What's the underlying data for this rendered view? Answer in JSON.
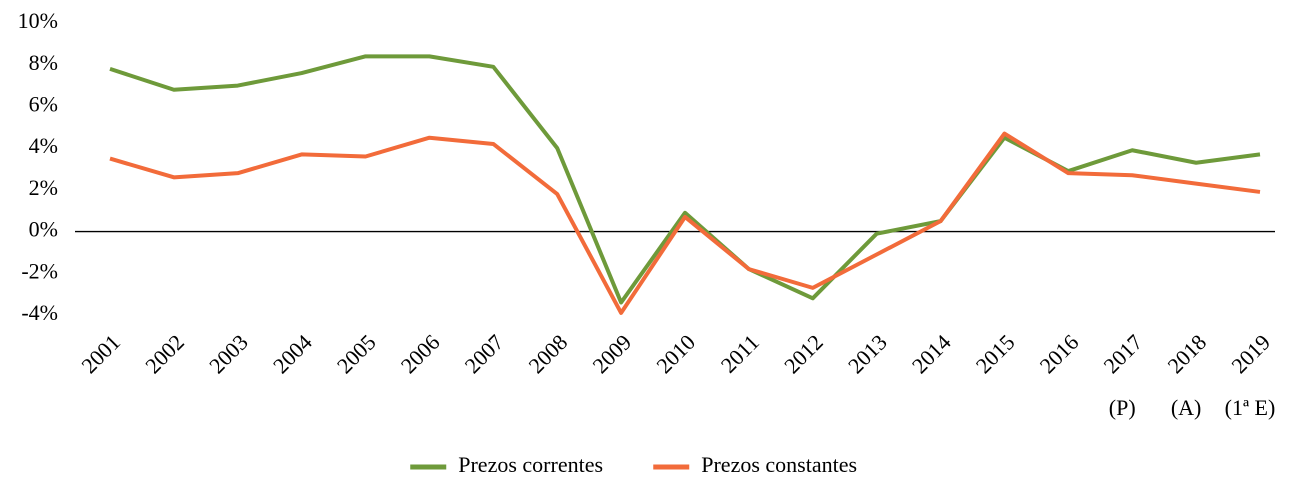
{
  "chart_data": {
    "type": "line",
    "categories": [
      "2001",
      "2002",
      "2003",
      "2004",
      "2005",
      "2006",
      "2007",
      "2008",
      "2009",
      "2010",
      "2011",
      "2012",
      "2013",
      "2014",
      "2015",
      "2016",
      "2017",
      "2018",
      "2019"
    ],
    "annotations": [
      {
        "text": "(P)",
        "x": "2017"
      },
      {
        "text": "(A)",
        "x": "2018"
      },
      {
        "text": "(1ª E)",
        "x": "2019"
      }
    ],
    "series": [
      {
        "name": "Prezos correntes",
        "color": "#6e9a3a",
        "values": [
          7.8,
          6.8,
          7.0,
          7.6,
          8.4,
          8.4,
          7.9,
          4.0,
          -3.4,
          0.9,
          -1.8,
          -3.2,
          -0.1,
          0.5,
          4.5,
          2.9,
          3.9,
          3.3,
          3.7
        ]
      },
      {
        "name": "Prezos constantes",
        "color": "#f26b3a",
        "values": [
          3.5,
          2.6,
          2.8,
          3.7,
          3.6,
          4.5,
          4.2,
          1.8,
          -3.9,
          0.7,
          -1.8,
          -2.7,
          -1.1,
          0.5,
          4.7,
          2.8,
          2.7,
          2.3,
          1.9
        ]
      }
    ],
    "ylim": [
      -4,
      10
    ],
    "yticks": [
      {
        "value": 10,
        "label": "10%"
      },
      {
        "value": 8,
        "label": "8%"
      },
      {
        "value": 6,
        "label": "6%"
      },
      {
        "value": 4,
        "label": "4%"
      },
      {
        "value": 2,
        "label": "2%"
      },
      {
        "value": 0,
        "label": "0%"
      },
      {
        "value": -2,
        "label": "-2%"
      },
      {
        "value": -4,
        "label": "-4%"
      }
    ],
    "grid": false,
    "legend": "bottom"
  }
}
